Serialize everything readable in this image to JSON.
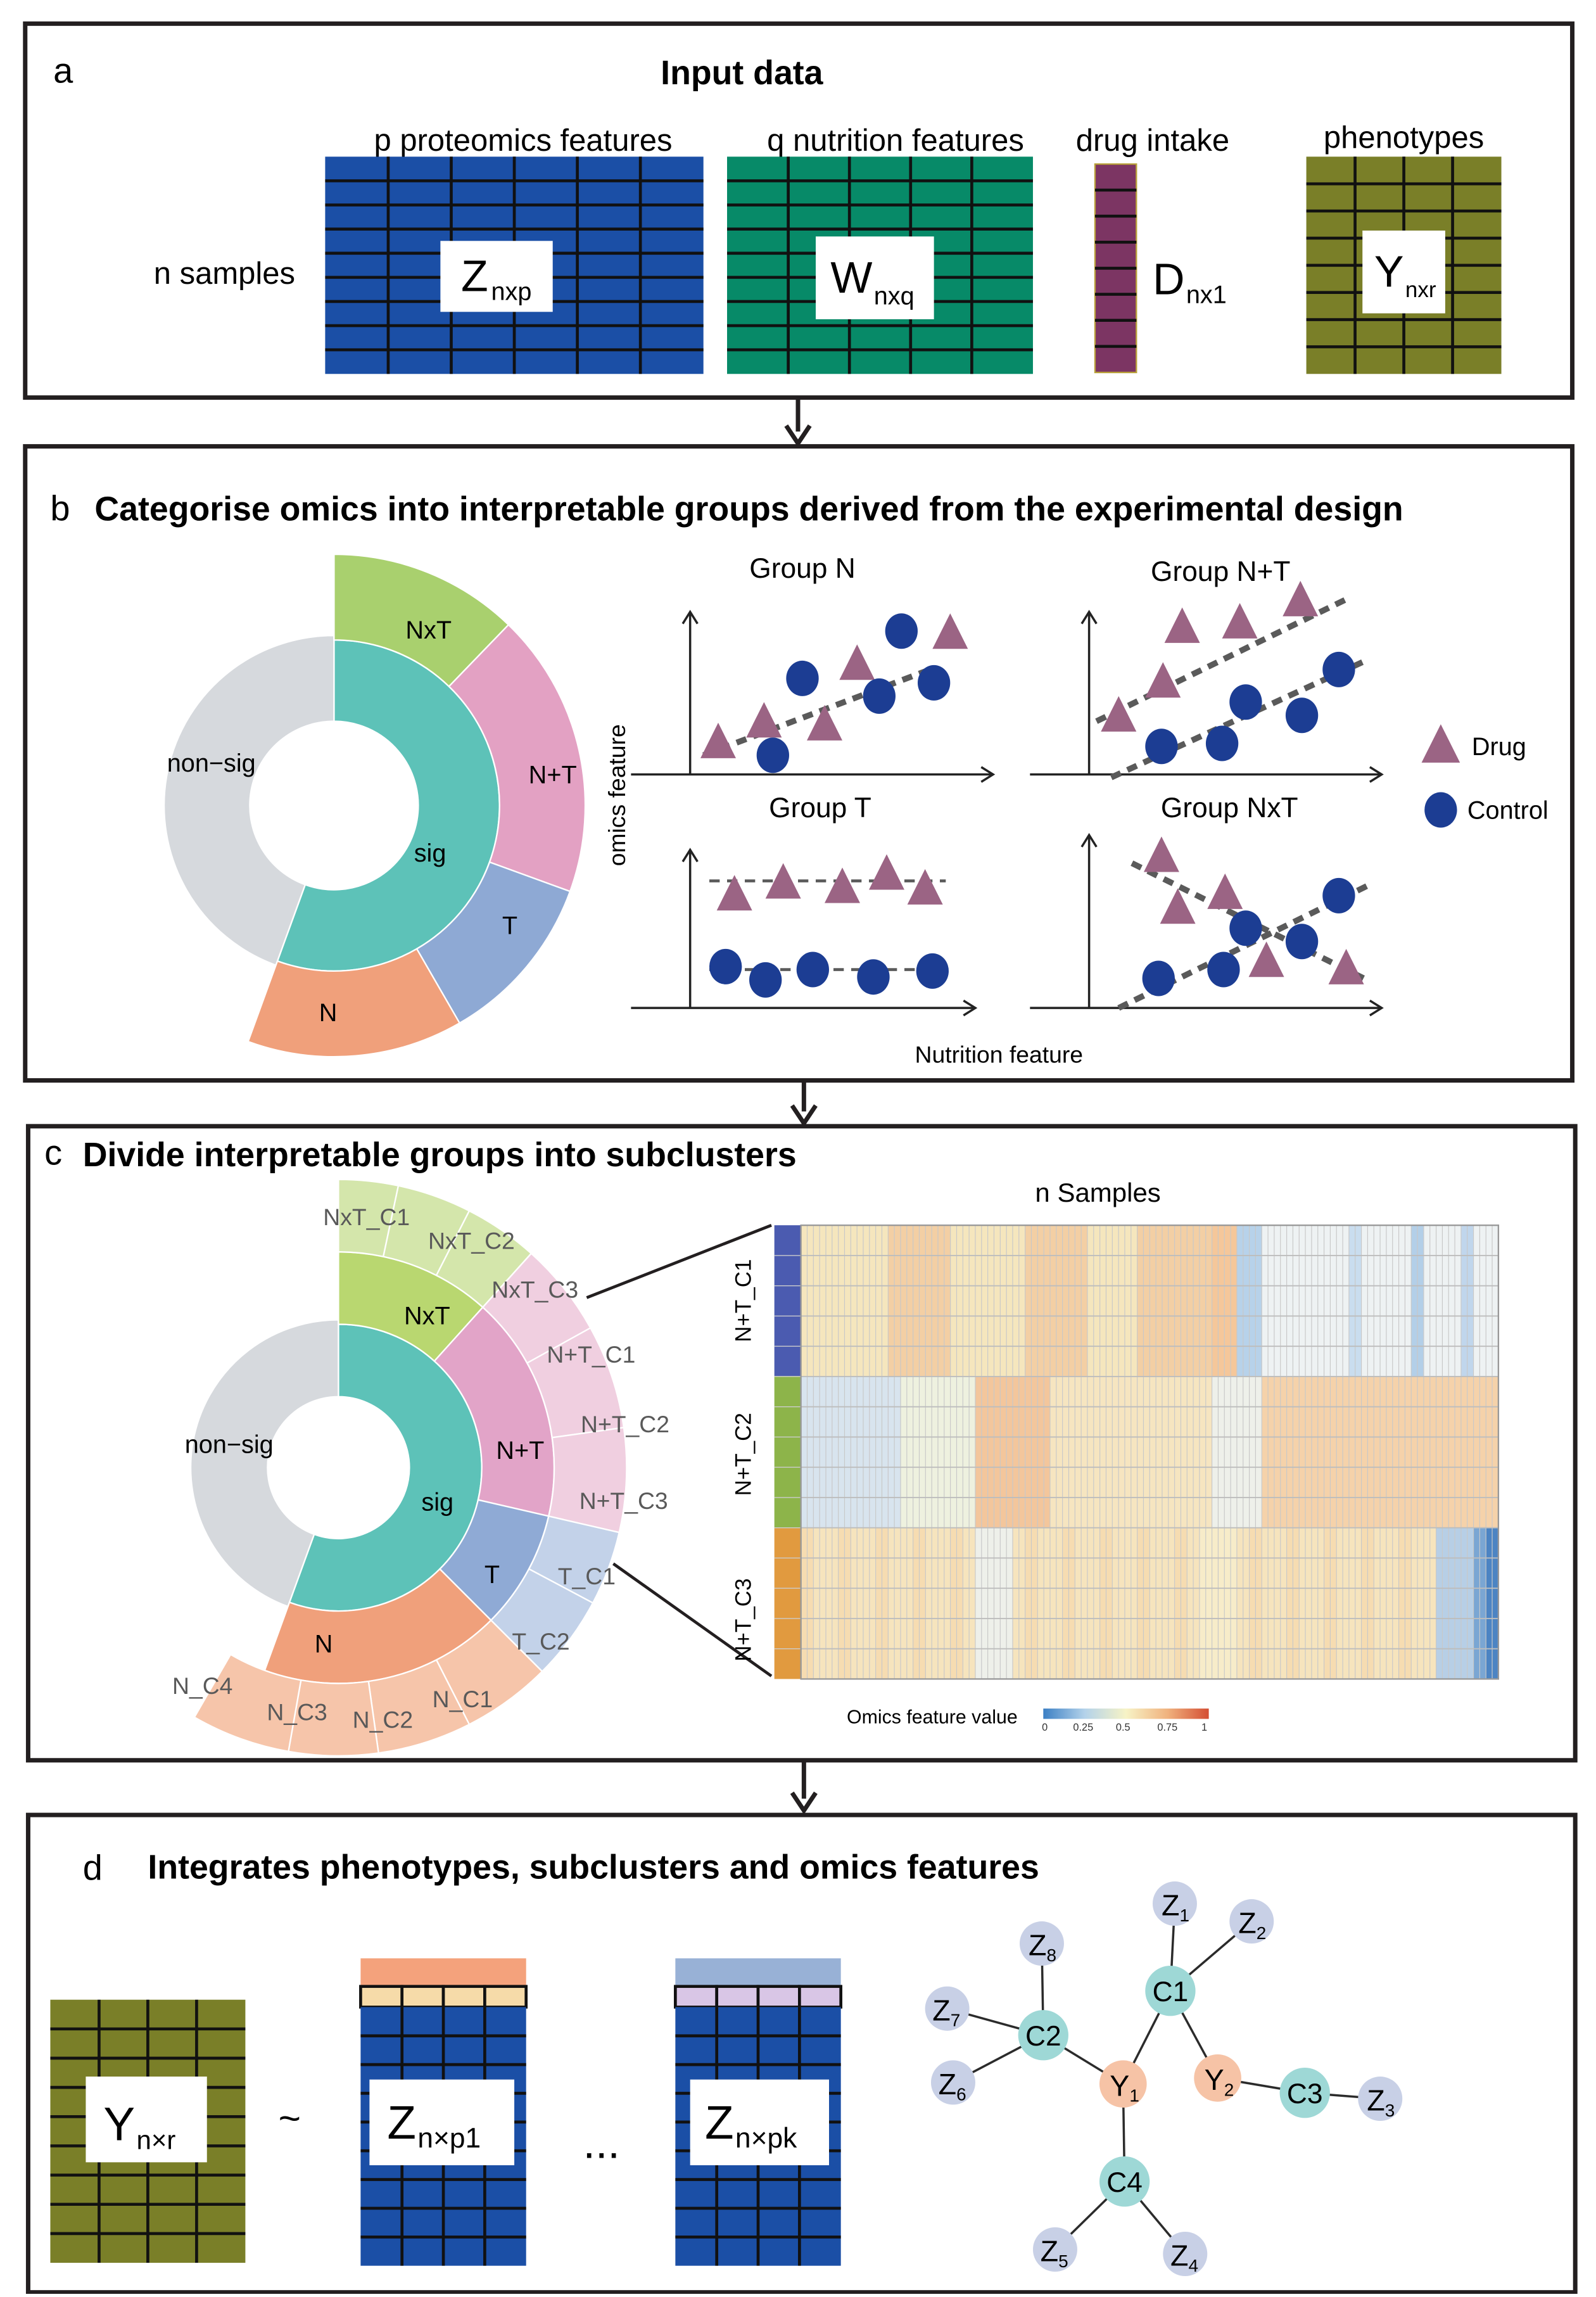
{
  "panel_a": {
    "letter": "a",
    "title": "Input data",
    "row_label": "n samples",
    "blocks": [
      {
        "header": "p proteomics features",
        "main": "Z",
        "sub": "nxp",
        "color": "#1b4fa6"
      },
      {
        "header": "q nutrition features",
        "main": "W",
        "sub": "nxq",
        "color": "#078a68"
      },
      {
        "header": "drug intake",
        "main": "D",
        "sub": "nx1",
        "color": "#7c3563"
      },
      {
        "header": "phenotypes",
        "main": "Y",
        "sub": "nxr",
        "color": "#7a7f28"
      }
    ]
  },
  "panel_b": {
    "letter": "b",
    "title": "Categorise omics into interpretable groups derived from the experimental design",
    "sunburst": {
      "labels": {
        "nxt": "NxT",
        "npt": "N+T",
        "t": "T",
        "n": "N",
        "sig": "sig",
        "nonsig": "non−sig"
      }
    },
    "plots": {
      "group_n": "Group N",
      "group_npt": "Group N+T",
      "group_t": "Group T",
      "group_nxt": "Group NxT",
      "ylabel": "omics feature",
      "xlabel": "Nutrition feature"
    },
    "legend": {
      "drug": "Drug",
      "control": "Control"
    },
    "colors": {
      "drug": "#9b6484",
      "control": "#1c3d93"
    }
  },
  "panel_c": {
    "letter": "c",
    "title": "Divide interpretable groups into subclusters",
    "sunburst": {
      "inner": {
        "nxt": "NxT",
        "npt": "N+T",
        "t": "T",
        "n": "N",
        "sig": "sig",
        "nonsig": "non−sig"
      },
      "outer": {
        "nxt_c1": "NxT_C1",
        "nxt_c2": "NxT_C2",
        "nxt_c3": "NxT_C3",
        "npt_c1": "N+T_C1",
        "npt_c2": "N+T_C2",
        "npt_c3": "N+T_C3",
        "t_c1": "T_C1",
        "t_c2": "T_C2",
        "n_c1": "N_C1",
        "n_c2": "N_C2",
        "n_c3": "N_C3",
        "n_c4": "N_C4"
      }
    },
    "heatmap": {
      "title": "n Samples",
      "row_labels": [
        "N+T_C1",
        "N+T_C2",
        "N+T_C3"
      ],
      "legend_title": "Omics feature value",
      "ticks": [
        "0",
        "0.25",
        "0.5",
        "0.75",
        "1"
      ]
    }
  },
  "panel_d": {
    "letter": "d",
    "title": "Integrates phenotypes, subclusters and omics features",
    "y_block": {
      "main": "Y",
      "sub": "n×r"
    },
    "tilde": "~",
    "z1_block": {
      "main": "Z",
      "sub": "n×p1"
    },
    "ellipsis": "...",
    "zk_block": {
      "main": "Z",
      "sub": "n×pk"
    },
    "network": {
      "nodes": {
        "z1": {
          "main": "Z",
          "sub": "1"
        },
        "z2": {
          "main": "Z",
          "sub": "2"
        },
        "z3": {
          "main": "Z",
          "sub": "3"
        },
        "z4": {
          "main": "Z",
          "sub": "4"
        },
        "z5": {
          "main": "Z",
          "sub": "5"
        },
        "z6": {
          "main": "Z",
          "sub": "6"
        },
        "z7": {
          "main": "Z",
          "sub": "7"
        },
        "z8": {
          "main": "Z",
          "sub": "8"
        },
        "c1": {
          "main": "C1",
          "sub": ""
        },
        "c2": {
          "main": "C2",
          "sub": ""
        },
        "c3": {
          "main": "C3",
          "sub": ""
        },
        "c4": {
          "main": "C4",
          "sub": ""
        },
        "y1": {
          "main": "Y",
          "sub": "1"
        },
        "y2": {
          "main": "Y",
          "sub": "2"
        }
      }
    }
  }
}
